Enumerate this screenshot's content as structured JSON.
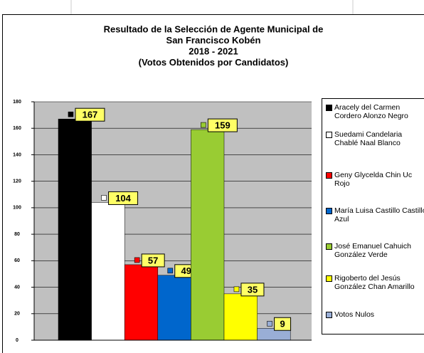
{
  "chart_data": {
    "type": "bar",
    "title": [
      "Resultado de la Selección de Agente Municipal de",
      "San Francisco Kobén",
      "2018 - 2021",
      "(Votos Obtenidos por Candidatos)"
    ],
    "categories": [
      "Aracely del Carmen Cordero Alonzo Negro",
      "Suedami Candelaria Chablé Naal Blanco",
      "Geny Glycelda Chin Uc Rojo",
      "María Luisa Castillo Castillo Azul",
      "José Emanuel Cahuich González Verde",
      "Rigoberto del Jesús González Chan Amarillo",
      "Votos Nulos"
    ],
    "values": [
      167,
      104,
      57,
      49,
      159,
      35,
      9
    ],
    "colors": [
      "#000000",
      "#ffffff",
      "#ff0000",
      "#0066cc",
      "#99cc33",
      "#ffff00",
      "#99aed6"
    ],
    "ylim": [
      0,
      180
    ],
    "yticks": [
      0,
      20,
      40,
      60,
      80,
      100,
      120,
      140,
      160,
      180
    ],
    "grid": true,
    "legend": "right"
  }
}
